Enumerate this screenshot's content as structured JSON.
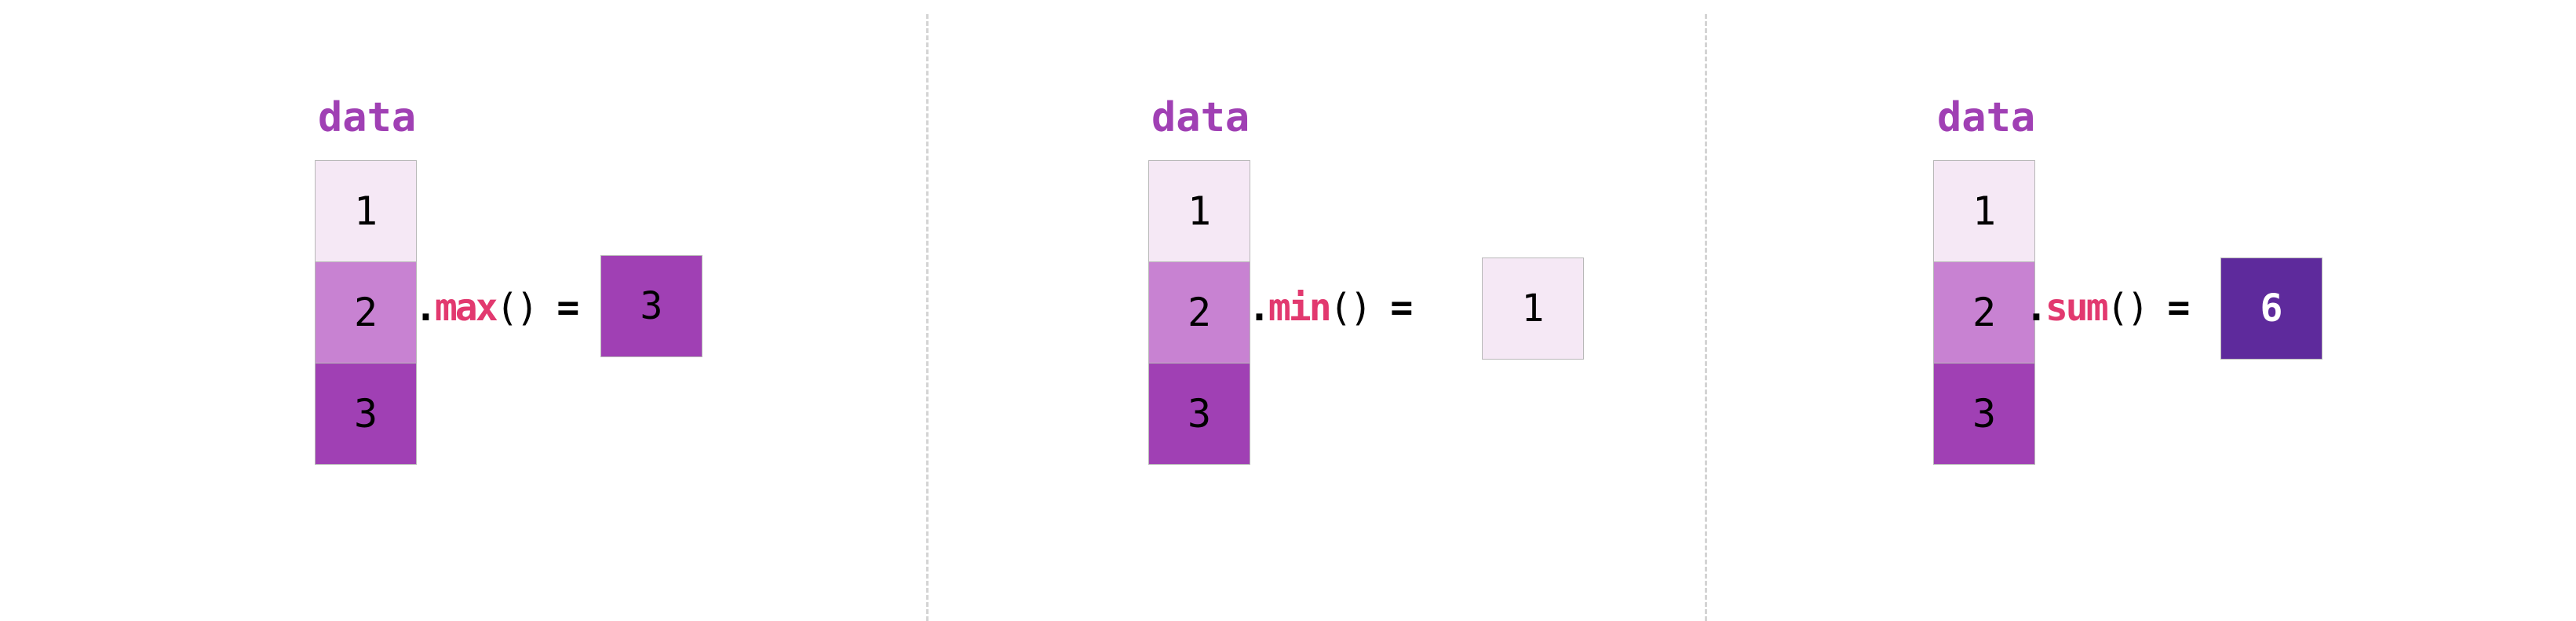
{
  "colors": {
    "light": "#f5e8f5",
    "mid": "#c882d2",
    "dark": "#a040b4",
    "darkest": "#5e2a9c",
    "method": "#e2396f",
    "label": "#a040b4"
  },
  "panels": [
    {
      "label": "data",
      "values": [
        "1",
        "2",
        "3"
      ],
      "dot": ".",
      "method": "max",
      "parens": "()",
      "equals": "=",
      "result": "3"
    },
    {
      "label": "data",
      "values": [
        "1",
        "2",
        "3"
      ],
      "dot": ".",
      "method": "min",
      "parens": "()",
      "equals": "=",
      "result": "1"
    },
    {
      "label": "data",
      "values": [
        "1",
        "2",
        "3"
      ],
      "dot": ".",
      "method": "sum",
      "parens": "()",
      "equals": "=",
      "result": "6"
    }
  ]
}
